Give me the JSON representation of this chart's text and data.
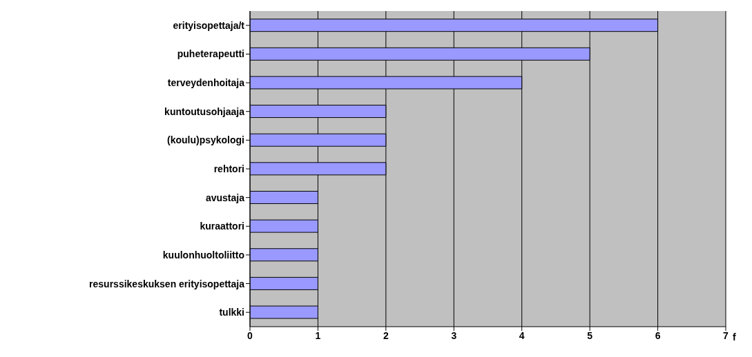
{
  "chart_data": {
    "type": "bar",
    "orientation": "horizontal",
    "xlabel": "f",
    "categories": [
      "erityisopettaja/t",
      "puheterapeutti",
      "terveydenhoitaja",
      "kuntoutusohjaaja",
      "(koulu)psykologi",
      "rehtori",
      "avustaja",
      "kuraattori",
      "kuulonhuoltoliitto",
      "resurssikeskuksen erityisopettaja",
      "tulkki"
    ],
    "values": [
      6,
      5,
      4,
      2,
      2,
      2,
      1,
      1,
      1,
      1,
      1
    ],
    "color": "#9999ff",
    "xlim": [
      0,
      7
    ],
    "xticks": [
      0,
      1,
      2,
      3,
      4,
      5,
      6,
      7
    ],
    "grid": "x"
  }
}
